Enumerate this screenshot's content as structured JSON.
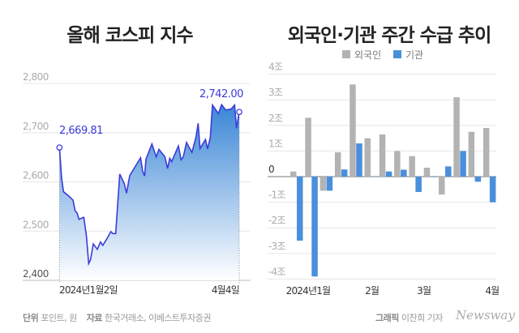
{
  "left_title": "올해 코스피 지수",
  "right_title": "외국인·기관 주간 수급 추이",
  "footer": {
    "unit_label": "단위",
    "unit_value": "포인트, 원",
    "source_label": "자료",
    "source_value": "한국거래소, 이베스트투자증권",
    "graphic_label": "그래픽",
    "graphic_value": "이찬희 기자",
    "brand": "Newsway"
  },
  "colors": {
    "line": "#3b3bd8",
    "fill_top": "#3a86d6",
    "foreign": "#b3b3b3",
    "institution": "#4a8fdc"
  },
  "chart_data": [
    {
      "type": "area",
      "title": "올해 코스피 지수",
      "ylim": [
        2400,
        2800
      ],
      "yticks": [
        "2,800",
        "2,700",
        "2,600",
        "2,500",
        "2,400"
      ],
      "ytick_values": [
        2800,
        2700,
        2600,
        2500,
        2400
      ],
      "xticks": [
        "2024년1월2일",
        "4월4일"
      ],
      "annotations": {
        "start": "2,669.81",
        "end": "2,742.00"
      },
      "values": [
        2669.81,
        2607,
        2580,
        2572,
        2563,
        2541,
        2537,
        2524,
        2528,
        2489,
        2434,
        2442,
        2474,
        2463,
        2478,
        2471,
        2484,
        2499,
        2495,
        2495,
        2616,
        2596,
        2577,
        2613,
        2649,
        2621,
        2612,
        2646,
        2677,
        2651,
        2666,
        2651,
        2627,
        2648,
        2641,
        2673,
        2645,
        2651,
        2680,
        2660,
        2691,
        2719,
        2668,
        2686,
        2667,
        2690,
        2756,
        2739,
        2757,
        2746,
        2748,
        2756,
        2709,
        2742.0
      ],
      "x_positions": [
        220,
        228,
        235,
        253,
        270,
        278,
        285,
        292,
        310,
        320,
        328,
        335,
        345,
        360,
        372,
        380,
        395,
        410,
        418,
        428,
        443,
        460,
        468,
        480,
        520,
        528,
        535,
        540,
        562,
        578,
        588,
        610,
        620,
        628,
        635,
        660,
        670,
        678,
        690,
        710,
        725,
        733,
        740,
        760,
        768,
        778,
        786,
        808,
        820,
        835,
        855,
        868,
        875,
        885
      ]
    },
    {
      "type": "bar",
      "title": "외국인·기관 주간 수급 추이",
      "ylim": [
        -4,
        4
      ],
      "yticks": [
        "4조",
        "3조",
        "2조",
        "1조",
        "0",
        "-1조",
        "-2조",
        "-3조",
        "-4조"
      ],
      "ytick_values": [
        4,
        3,
        2,
        1,
        0,
        -1,
        -2,
        -3,
        -4
      ],
      "xticks": [
        "2024년1월",
        "2월",
        "3월",
        "4월"
      ],
      "xtick_weeks": [
        1.2,
        5.5,
        9,
        13.6
      ],
      "series": [
        {
          "name": "외국인",
          "values": [
            0.2,
            2.3,
            -0.55,
            0.95,
            3.6,
            1.5,
            1.65,
            1.0,
            0.8,
            0.35,
            -0.7,
            3.1,
            1.75,
            1.9
          ]
        },
        {
          "name": "기관",
          "values": [
            -2.5,
            -3.9,
            -0.55,
            0.28,
            1.3,
            0,
            0.2,
            0.27,
            -0.6,
            -0.02,
            0.4,
            1.0,
            -0.2,
            -1.0
          ]
        }
      ]
    }
  ]
}
